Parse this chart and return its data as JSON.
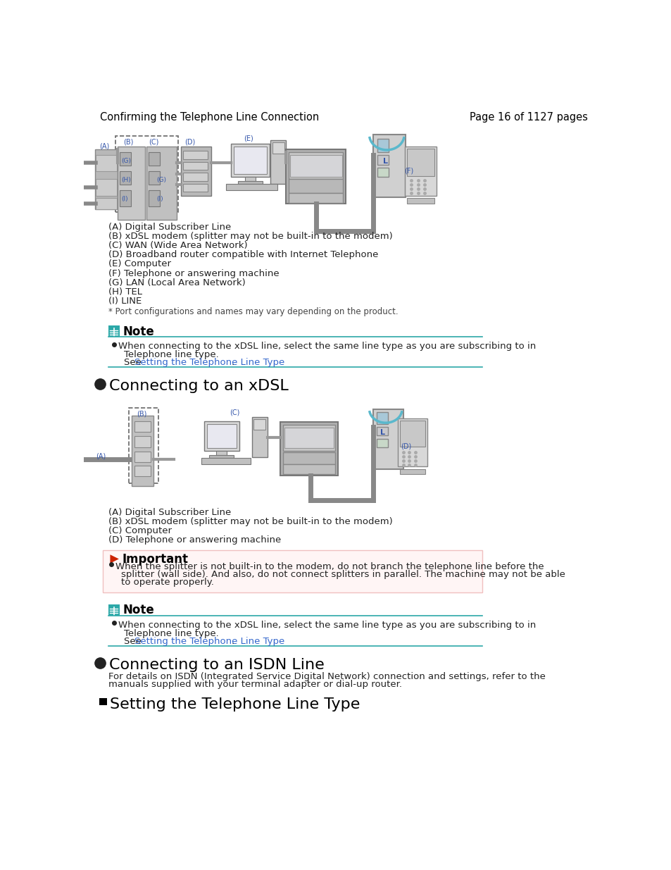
{
  "bg_color": "#ffffff",
  "header_left": "Confirming the Telephone Line Connection",
  "header_right": "Page 16 of 1127 pages",
  "header_color": "#000000",
  "header_fontsize": 10.5,
  "note_icon_color": "#2ca8a8",
  "note_title": "Note",
  "note_title_fontsize": 12,
  "note_line_color": "#2ca8a8",
  "important_icon_color": "#cc2200",
  "important_title": "Important",
  "important_title_fontsize": 12,
  "important_bg_color": "#fff5f5",
  "important_border_color": "#f0c0c0",
  "link_color": "#3366cc",
  "section1_title": "Connecting to an xDSL",
  "section1_fontsize": 16,
  "section2_title": "Connecting to an ISDN Line",
  "section2_fontsize": 16,
  "section3_title": "Setting the Telephone Line Type",
  "section3_fontsize": 16,
  "diagram1_labels": [
    "(A) Digital Subscriber Line",
    "(B) xDSL modem (splitter may not be built-in to the modem)",
    "(C) WAN (Wide Area Network)",
    "(D) Broadband router compatible with Internet Telephone",
    "(E) Computer",
    "(F) Telephone or answering machine",
    "(G) LAN (Local Area Network)",
    "(H) TEL",
    "(I) LINE"
  ],
  "diagram1_note": "* Port configurations and names may vary depending on the product.",
  "diagram2_labels": [
    "(A) Digital Subscriber Line",
    "(B) xDSL modem (splitter may not be built-in to the modem)",
    "(C) Computer",
    "(D) Telephone or answering machine"
  ],
  "section2_text_1": "For details on ISDN (Integrated Service Digital Network) connection and settings, refer to the",
  "section2_text_2": "manuals supplied with your terminal adapter or dial-up router.",
  "text_color": "#222222",
  "body_fontsize": 9.5,
  "small_fontsize": 8.5,
  "note_bullet_text_1": "When connecting to the xDSL line, select the same line type as you are subscribing to in",
  "note_bullet_text_2": "Telephone line type.",
  "note_bullet_text_3": "See ",
  "note_bullet_link": "Setting the Telephone Line Type",
  "note_bullet_period": ".",
  "imp_bullet_text_1": "When the splitter is not built-in to the modem, do not branch the telephone line before the",
  "imp_bullet_text_2": "splitter (wall side). And also, do not connect splitters in parallel. The machine may not be able",
  "imp_bullet_text_3": "to operate properly."
}
